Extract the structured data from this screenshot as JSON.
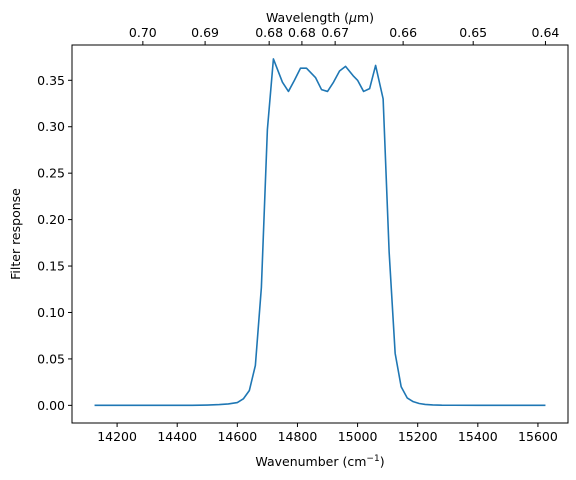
{
  "chart_data": {
    "type": "line",
    "xlabel": "Wavenumber (cm",
    "xlabel_sup": "−1",
    "xlabel_close": ")",
    "x2label": "Wavelength (",
    "x2label_mu": "μ",
    "x2label_unit": "m)",
    "ylabel": "Filter response",
    "xlim": [
      14050,
      15700
    ],
    "ylim": [
      -0.019,
      0.388
    ],
    "x_ticks": [
      14200,
      14400,
      14600,
      14800,
      15000,
      15200,
      15400,
      15600
    ],
    "x_tick_labels": [
      "14200",
      "14400",
      "14600",
      "14800",
      "15000",
      "15200",
      "15400",
      "15600"
    ],
    "y_ticks": [
      0.0,
      0.05,
      0.1,
      0.15,
      0.2,
      0.25,
      0.3,
      0.35
    ],
    "y_tick_labels": [
      "0.00",
      "0.05",
      "0.10",
      "0.15",
      "0.20",
      "0.25",
      "0.30",
      "0.35"
    ],
    "x2_ticks": [
      0.7,
      0.69,
      0.68,
      0.675,
      0.67,
      0.66,
      0.65,
      0.64
    ],
    "x2_tick_labels": [
      "0.70",
      "0.69",
      "0.68",
      "0.68",
      "0.67",
      "0.66",
      "0.65",
      "0.64"
    ],
    "line_color": "#1f77b4",
    "grid": false,
    "series": [
      {
        "x": [
          14125,
          14200,
          14300,
          14400,
          14450,
          14500,
          14540,
          14570,
          14600,
          14620,
          14640,
          14660,
          14680,
          14700,
          14720,
          14750,
          14770,
          14790,
          14810,
          14830,
          14860,
          14880,
          14900,
          14920,
          14940,
          14960,
          14985,
          15000,
          15020,
          15040,
          15060,
          15085,
          15105,
          15125,
          15145,
          15165,
          15185,
          15205,
          15225,
          15250,
          15280,
          15320,
          15400,
          15500,
          15625
        ],
        "y": [
          0.0,
          0.0,
          0.0,
          0.0,
          0.0,
          0.0003,
          0.0008,
          0.0015,
          0.003,
          0.007,
          0.016,
          0.043,
          0.127,
          0.297,
          0.373,
          0.348,
          0.338,
          0.35,
          0.363,
          0.363,
          0.353,
          0.34,
          0.338,
          0.348,
          0.36,
          0.365,
          0.355,
          0.35,
          0.338,
          0.341,
          0.366,
          0.33,
          0.165,
          0.056,
          0.02,
          0.008,
          0.004,
          0.002,
          0.001,
          0.0005,
          0.0002,
          0.0001,
          0.0,
          0.0,
          0.0
        ]
      }
    ]
  }
}
